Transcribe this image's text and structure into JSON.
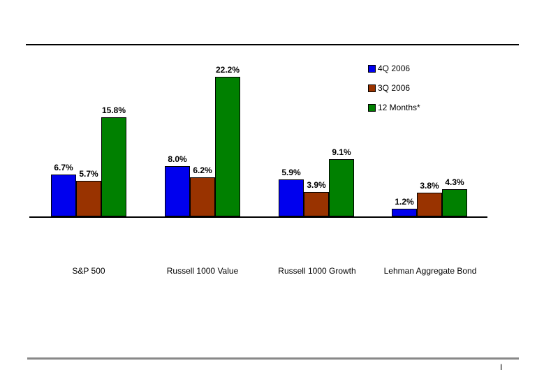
{
  "page": {
    "background": "#ffffff",
    "top_rule_color": "#000000",
    "bottom_rule_color": "#888888"
  },
  "footer": {
    "mark": "I"
  },
  "chart_data": {
    "type": "bar",
    "title": "",
    "xlabel": "",
    "ylabel": "",
    "ylim": [
      0,
      24
    ],
    "grid": false,
    "legend_position": "top-right",
    "value_unit": "%",
    "categories": [
      "S&P 500",
      "Russell 1000 Value",
      "Russell 1000 Growth",
      "Lehman Aggregate Bond"
    ],
    "series": [
      {
        "name": "4Q 2006",
        "color": "#0000ee",
        "values": [
          6.7,
          8.0,
          5.9,
          1.2
        ],
        "labels": [
          "6.7%",
          "8.0%",
          "5.9%",
          "1.2%"
        ]
      },
      {
        "name": "3Q 2006",
        "color": "#993300",
        "values": [
          5.7,
          6.2,
          3.9,
          3.8
        ],
        "labels": [
          "5.7%",
          "6.2%",
          "3.9%",
          "3.8%"
        ]
      },
      {
        "name": "12 Months*",
        "color": "#008000",
        "values": [
          15.8,
          22.2,
          9.1,
          4.3
        ],
        "labels": [
          "15.8%",
          "22.2%",
          "9.1%",
          "4.3%"
        ]
      }
    ]
  }
}
